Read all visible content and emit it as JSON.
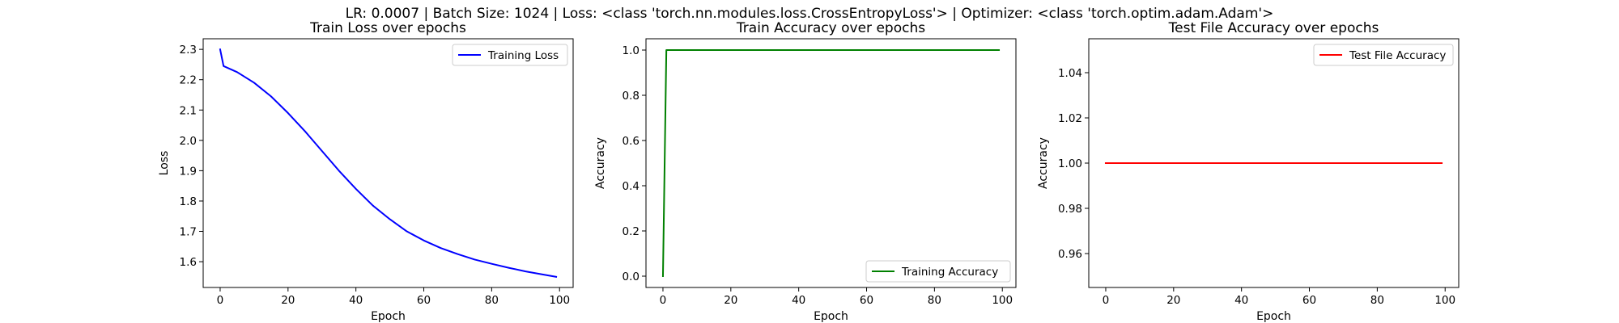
{
  "figure": {
    "suptitle": "LR: 0.0007 | Batch Size: 1024 | Loss: <class 'torch.nn.modules.loss.CrossEntropyLoss'> | Optimizer: <class 'torch.optim.adam.Adam'>"
  },
  "chart_data": [
    {
      "type": "line",
      "title": "Train Loss over epochs",
      "xlabel": "Epoch",
      "ylabel": "Loss",
      "xlim": [
        -5,
        104
      ],
      "ylim": [
        1.515,
        2.335
      ],
      "xticks": [
        0,
        20,
        40,
        60,
        80,
        100
      ],
      "xtick_labels": [
        "0",
        "20",
        "40",
        "60",
        "80",
        "100"
      ],
      "yticks": [
        1.6,
        1.7,
        1.8,
        1.9,
        2.0,
        2.1,
        2.2,
        2.3
      ],
      "ytick_labels": [
        "1.6",
        "1.7",
        "1.8",
        "1.9",
        "2.0",
        "2.1",
        "2.2",
        "2.3"
      ],
      "grid": false,
      "legend_position": "upper right",
      "series": [
        {
          "name": "Training Loss",
          "color": "#0000ff",
          "x": [
            0,
            1,
            5,
            10,
            15,
            20,
            25,
            30,
            35,
            40,
            45,
            50,
            55,
            60,
            65,
            70,
            75,
            80,
            85,
            90,
            95,
            99
          ],
          "y": [
            2.3,
            2.245,
            2.225,
            2.19,
            2.145,
            2.09,
            2.03,
            1.965,
            1.9,
            1.84,
            1.785,
            1.74,
            1.7,
            1.67,
            1.645,
            1.625,
            1.607,
            1.593,
            1.58,
            1.568,
            1.558,
            1.55
          ]
        }
      ]
    },
    {
      "type": "line",
      "title": "Train Accuracy over epochs",
      "xlabel": "Epoch",
      "ylabel": "Accuracy",
      "xlim": [
        -5,
        104
      ],
      "ylim": [
        -0.05,
        1.05
      ],
      "xticks": [
        0,
        20,
        40,
        60,
        80,
        100
      ],
      "xtick_labels": [
        "0",
        "20",
        "40",
        "60",
        "80",
        "100"
      ],
      "yticks": [
        0.0,
        0.2,
        0.4,
        0.6,
        0.8,
        1.0
      ],
      "ytick_labels": [
        "0.0",
        "0.2",
        "0.4",
        "0.6",
        "0.8",
        "1.0"
      ],
      "grid": false,
      "legend_position": "lower right",
      "series": [
        {
          "name": "Training Accuracy",
          "color": "#008000",
          "x": [
            0,
            1,
            2,
            99
          ],
          "y": [
            0.0,
            1.0,
            1.0,
            1.0
          ]
        }
      ]
    },
    {
      "type": "line",
      "title": "Test File Accuracy over epochs",
      "xlabel": "Epoch",
      "ylabel": "Accuracy",
      "xlim": [
        -5,
        104
      ],
      "ylim": [
        0.945,
        1.055
      ],
      "xticks": [
        0,
        20,
        40,
        60,
        80,
        100
      ],
      "xtick_labels": [
        "0",
        "20",
        "40",
        "60",
        "80",
        "100"
      ],
      "yticks": [
        0.96,
        0.98,
        1.0,
        1.02,
        1.04
      ],
      "ytick_labels": [
        "0.96",
        "0.98",
        "1.00",
        "1.02",
        "1.04"
      ],
      "grid": false,
      "legend_position": "upper right",
      "series": [
        {
          "name": "Test File Accuracy",
          "color": "#ff0000",
          "x": [
            0,
            99
          ],
          "y": [
            1.0,
            1.0
          ]
        }
      ]
    }
  ]
}
